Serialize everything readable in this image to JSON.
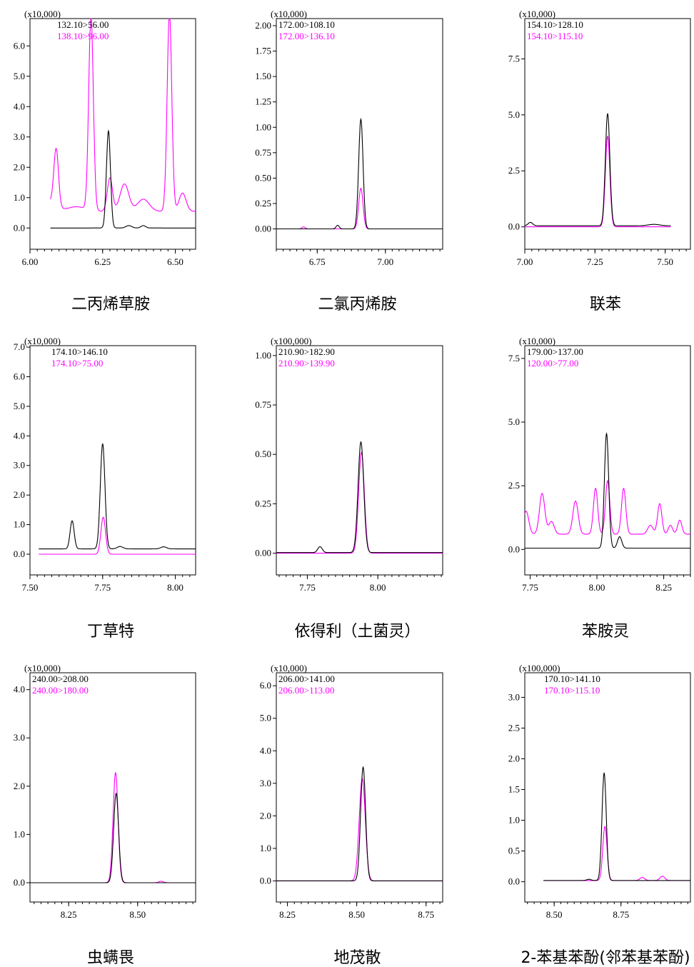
{
  "colors": {
    "series1": "#000000",
    "series2": "#ff00ff",
    "frame": "#000000"
  },
  "chart_data": [
    {
      "type": "line",
      "title": "二丙烯草胺",
      "y_scale_label": "(x10,000)",
      "xlim": [
        6.0,
        6.57
      ],
      "ylim": [
        -0.7,
        6.9
      ],
      "x_ticks": [
        "6.00",
        "6.25",
        "6.50"
      ],
      "y_ticks": [
        "0.0",
        "1.0",
        "2.0",
        "3.0",
        "4.0",
        "5.0",
        "6.0"
      ],
      "series": [
        {
          "name": "132.10>56.00",
          "color": "#000000",
          "baseline": 0.0,
          "x_range": [
            6.07,
            6.57
          ],
          "peaks": [
            [
              6.27,
              3.2,
              0.007
            ],
            [
              6.34,
              0.08,
              0.01
            ],
            [
              6.39,
              0.08,
              0.008
            ]
          ]
        },
        {
          "name": "138.10>96.00",
          "color": "#ff00ff",
          "baseline": 0.55,
          "x_range": [
            6.07,
            6.57
          ],
          "peaks": [
            [
              6.09,
              1.9,
              0.008
            ],
            [
              6.05,
              0.4,
              0.03
            ],
            [
              6.16,
              0.15,
              0.03
            ],
            [
              6.21,
              6.4,
              0.008
            ],
            [
              6.275,
              1.1,
              0.009
            ],
            [
              6.325,
              0.9,
              0.015
            ],
            [
              6.39,
              0.4,
              0.02
            ],
            [
              6.48,
              6.5,
              0.008
            ],
            [
              6.525,
              0.6,
              0.012
            ]
          ]
        }
      ]
    },
    {
      "type": "line",
      "title": "二氯丙烯胺",
      "y_scale_label": "(x10,000)",
      "xlim": [
        6.6,
        7.21
      ],
      "ylim": [
        -0.2,
        2.07
      ],
      "x_ticks": [
        "6.75",
        "7.00"
      ],
      "y_ticks": [
        "0.00",
        "0.25",
        "0.50",
        "0.75",
        "1.00",
        "1.25",
        "1.50",
        "1.75",
        "2.00"
      ],
      "series": [
        {
          "name": "172.00>108.10",
          "color": "#000000",
          "baseline": 0.0,
          "x_range": [
            6.6,
            7.21
          ],
          "peaks": [
            [
              6.91,
              1.08,
              0.008
            ],
            [
              6.825,
              0.035,
              0.006
            ]
          ]
        },
        {
          "name": "172.00>136.10",
          "color": "#ff00ff",
          "baseline": 0.0,
          "x_range": [
            6.6,
            7.21
          ],
          "peaks": [
            [
              6.91,
              0.4,
              0.008
            ],
            [
              6.7,
              0.02,
              0.006
            ]
          ]
        }
      ]
    },
    {
      "type": "line",
      "title": "联苯",
      "y_scale_label": "(x10,000)",
      "xlim": [
        7.0,
        7.59
      ],
      "ylim": [
        -1.0,
        9.3
      ],
      "x_ticks": [
        "7.00",
        "7.25",
        "7.50"
      ],
      "y_ticks": [
        "0.0",
        "2.5",
        "5.0",
        "7.5"
      ],
      "series": [
        {
          "name": "154.10>128.10",
          "color": "#000000",
          "baseline": 0.05,
          "x_range": [
            7.0,
            7.52
          ],
          "peaks": [
            [
              7.295,
              5.0,
              0.008
            ],
            [
              7.02,
              0.15,
              0.008
            ],
            [
              7.46,
              0.06,
              0.02
            ]
          ]
        },
        {
          "name": "154.10>115.10",
          "color": "#ff00ff",
          "baseline": 0.0,
          "x_range": [
            7.0,
            7.52
          ],
          "peaks": [
            [
              7.295,
              4.05,
              0.008
            ]
          ]
        }
      ]
    },
    {
      "type": "line",
      "title": "丁草特",
      "y_scale_label": "(x10,000)",
      "xlim": [
        7.5,
        8.07
      ],
      "ylim": [
        -0.7,
        7.05
      ],
      "x_ticks": [
        "7.50",
        "7.75",
        "8.00"
      ],
      "y_ticks": [
        "0.0",
        "1.0",
        "2.0",
        "3.0",
        "4.0",
        "5.0",
        "6.0",
        "7.0"
      ],
      "series": [
        {
          "name": "174.10>146.10",
          "color": "#000000",
          "baseline": 0.18,
          "x_range": [
            7.53,
            8.07
          ],
          "peaks": [
            [
              7.75,
              3.55,
              0.008
            ],
            [
              7.645,
              0.95,
              0.007
            ],
            [
              7.81,
              0.08,
              0.01
            ],
            [
              7.96,
              0.07,
              0.01
            ]
          ]
        },
        {
          "name": "174.10>75.00",
          "color": "#ff00ff",
          "baseline": 0.0,
          "x_range": [
            7.53,
            8.07
          ],
          "peaks": [
            [
              7.752,
              1.25,
              0.008
            ]
          ]
        }
      ]
    },
    {
      "type": "line",
      "title": "依得利（土菌灵）",
      "y_scale_label": "(x100,000)",
      "xlim": [
        7.64,
        8.23
      ],
      "ylim": [
        -0.11,
        1.05
      ],
      "x_ticks": [
        "7.75",
        "8.00"
      ],
      "y_ticks": [
        "0.00",
        "0.25",
        "0.50",
        "0.75",
        "1.00"
      ],
      "series": [
        {
          "name": "210.90>182.90",
          "color": "#000000",
          "baseline": 0.003,
          "x_range": [
            7.64,
            8.23
          ],
          "peaks": [
            [
              7.94,
              0.56,
              0.01
            ],
            [
              7.795,
              0.03,
              0.008
            ]
          ]
        },
        {
          "name": "210.90>139.90",
          "color": "#ff00ff",
          "baseline": 0.0,
          "x_range": [
            7.64,
            8.23
          ],
          "peaks": [
            [
              7.942,
              0.51,
              0.01
            ]
          ]
        }
      ]
    },
    {
      "type": "line",
      "title": "苯胺灵",
      "y_scale_label": "(x10,000)",
      "xlim": [
        7.73,
        8.35
      ],
      "ylim": [
        -1.0,
        8.0
      ],
      "x_ticks": [
        "7.75",
        "8.00",
        "8.25"
      ],
      "y_ticks": [
        "0.0",
        "2.5",
        "5.0",
        "7.5"
      ],
      "series": [
        {
          "name": "179.00>137.00",
          "color": "#000000",
          "baseline": 0.05,
          "x_range": [
            7.73,
            8.35
          ],
          "peaks": [
            [
              8.036,
              4.5,
              0.008
            ],
            [
              8.085,
              0.45,
              0.008
            ]
          ]
        },
        {
          "name": "120.00>77.00",
          "color": "#ff00ff",
          "baseline": 0.6,
          "x_range": [
            7.73,
            8.35
          ],
          "peaks": [
            [
              7.735,
              0.9,
              0.01
            ],
            [
              7.795,
              1.6,
              0.01
            ],
            [
              7.83,
              0.5,
              0.01
            ],
            [
              7.92,
              1.3,
              0.01
            ],
            [
              7.995,
              1.8,
              0.008
            ],
            [
              8.04,
              2.1,
              0.008
            ],
            [
              8.1,
              1.8,
              0.008
            ],
            [
              8.2,
              0.35,
              0.01
            ],
            [
              8.235,
              1.2,
              0.008
            ],
            [
              8.275,
              0.35,
              0.008
            ],
            [
              8.31,
              0.55,
              0.008
            ]
          ]
        }
      ]
    },
    {
      "type": "line",
      "title": "虫螨畏",
      "y_scale_label": "(x10,000)",
      "xlim": [
        8.11,
        8.71
      ],
      "ylim": [
        -0.4,
        4.35
      ],
      "x_ticks": [
        "8.25",
        "8.50"
      ],
      "y_ticks": [
        "0.0",
        "1.0",
        "2.0",
        "3.0",
        "4.0"
      ],
      "series": [
        {
          "name": "240.00>208.00",
          "color": "#000000",
          "baseline": 0.0,
          "x_range": [
            8.11,
            8.71
          ],
          "peaks": [
            [
              8.422,
              1.85,
              0.009
            ]
          ]
        },
        {
          "name": "240.00>180.00",
          "color": "#ff00ff",
          "baseline": 0.0,
          "x_range": [
            8.11,
            8.71
          ],
          "peaks": [
            [
              8.42,
              2.28,
              0.009
            ],
            [
              8.585,
              0.03,
              0.008
            ]
          ]
        }
      ]
    },
    {
      "type": "line",
      "title": "地茂散",
      "y_scale_label": "(x10,000)",
      "xlim": [
        8.21,
        8.81
      ],
      "ylim": [
        -0.65,
        6.4
      ],
      "x_ticks": [
        "8.25",
        "8.50",
        "8.75"
      ],
      "y_ticks": [
        "0.0",
        "1.0",
        "2.0",
        "3.0",
        "4.0",
        "5.0",
        "6.0"
      ],
      "series": [
        {
          "name": "206.00>141.00",
          "color": "#000000",
          "baseline": 0.0,
          "x_range": [
            8.21,
            8.81
          ],
          "peaks": [
            [
              8.523,
              3.5,
              0.009
            ]
          ]
        },
        {
          "name": "206.00>113.00",
          "color": "#ff00ff",
          "baseline": 0.0,
          "x_range": [
            8.21,
            8.81
          ],
          "peaks": [
            [
              8.52,
              3.15,
              0.011
            ]
          ]
        }
      ]
    },
    {
      "type": "line",
      "title": "2-苯基苯酚(邻苯基苯酚)",
      "y_scale_label": "(x100,000)",
      "xlim": [
        8.39,
        9.01
      ],
      "ylim": [
        -0.33,
        3.4
      ],
      "x_ticks": [
        "8.50",
        "8.75"
      ],
      "y_ticks": [
        "0.0",
        "0.5",
        "1.0",
        "1.5",
        "2.0",
        "2.5",
        "3.0"
      ],
      "series": [
        {
          "name": "170.10>141.10",
          "color": "#000000",
          "baseline": 0.02,
          "x_range": [
            8.46,
            9.01
          ],
          "peaks": [
            [
              8.687,
              1.75,
              0.008
            ],
            [
              8.63,
              0.02,
              0.008
            ]
          ]
        },
        {
          "name": "170.10>115.10",
          "color": "#ff00ff",
          "baseline": 0.02,
          "x_range": [
            8.46,
            9.01
          ],
          "peaks": [
            [
              8.69,
              0.88,
              0.008
            ],
            [
              8.83,
              0.05,
              0.009
            ],
            [
              8.905,
              0.07,
              0.009
            ]
          ]
        }
      ]
    }
  ]
}
